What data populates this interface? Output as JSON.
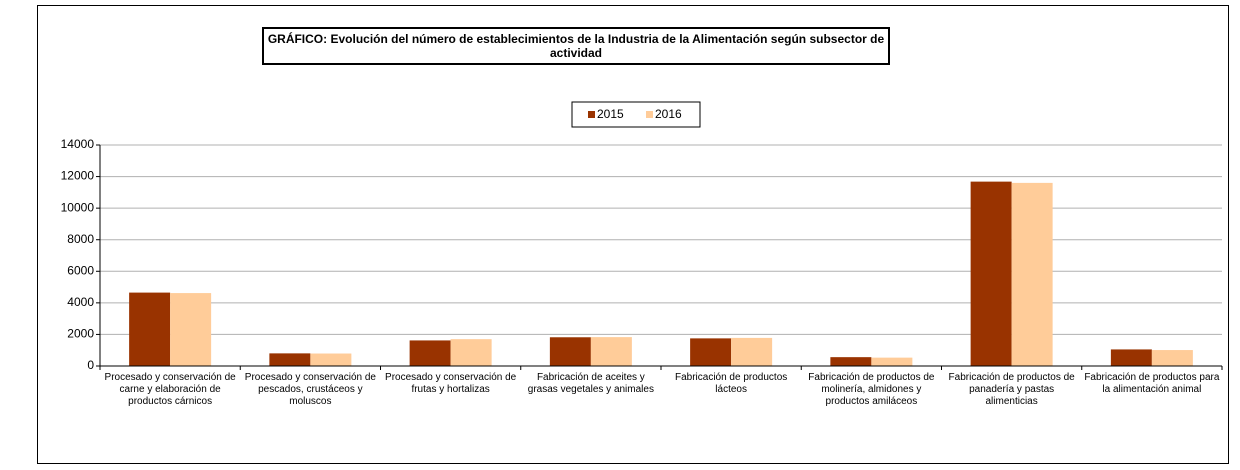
{
  "chart_data": {
    "type": "bar",
    "title": "GRÁFICO: Evolución del número de establecimientos de la Industria de la Alimentación según subsector de actividad",
    "categories": [
      "Procesado y conservación de carne y elaboración de productos cárnicos",
      "Procesado y conservación de pescados, crustáceos y moluscos",
      "Procesado y conservación de frutas y hortalizas",
      "Fabricación de aceites y grasas vegetales y animales",
      "Fabricación de productos lácteos",
      "Fabricación de productos de molinería, almidones y productos amiláceos",
      "Fabricación de productos de panadería y pastas alimenticias",
      "Fabricación de productos para la alimentación animal"
    ],
    "series": [
      {
        "name": "2015",
        "color": "#993300",
        "values": [
          4650,
          800,
          1620,
          1820,
          1750,
          560,
          11680,
          1050
        ]
      },
      {
        "name": "2016",
        "color": "#FFCC99",
        "values": [
          4620,
          790,
          1700,
          1830,
          1780,
          530,
          11600,
          1010
        ]
      }
    ],
    "ylim": [
      0,
      14000
    ],
    "yticks": [
      0,
      2000,
      4000,
      6000,
      8000,
      10000,
      12000,
      14000
    ],
    "grid": true,
    "legend": "top"
  }
}
